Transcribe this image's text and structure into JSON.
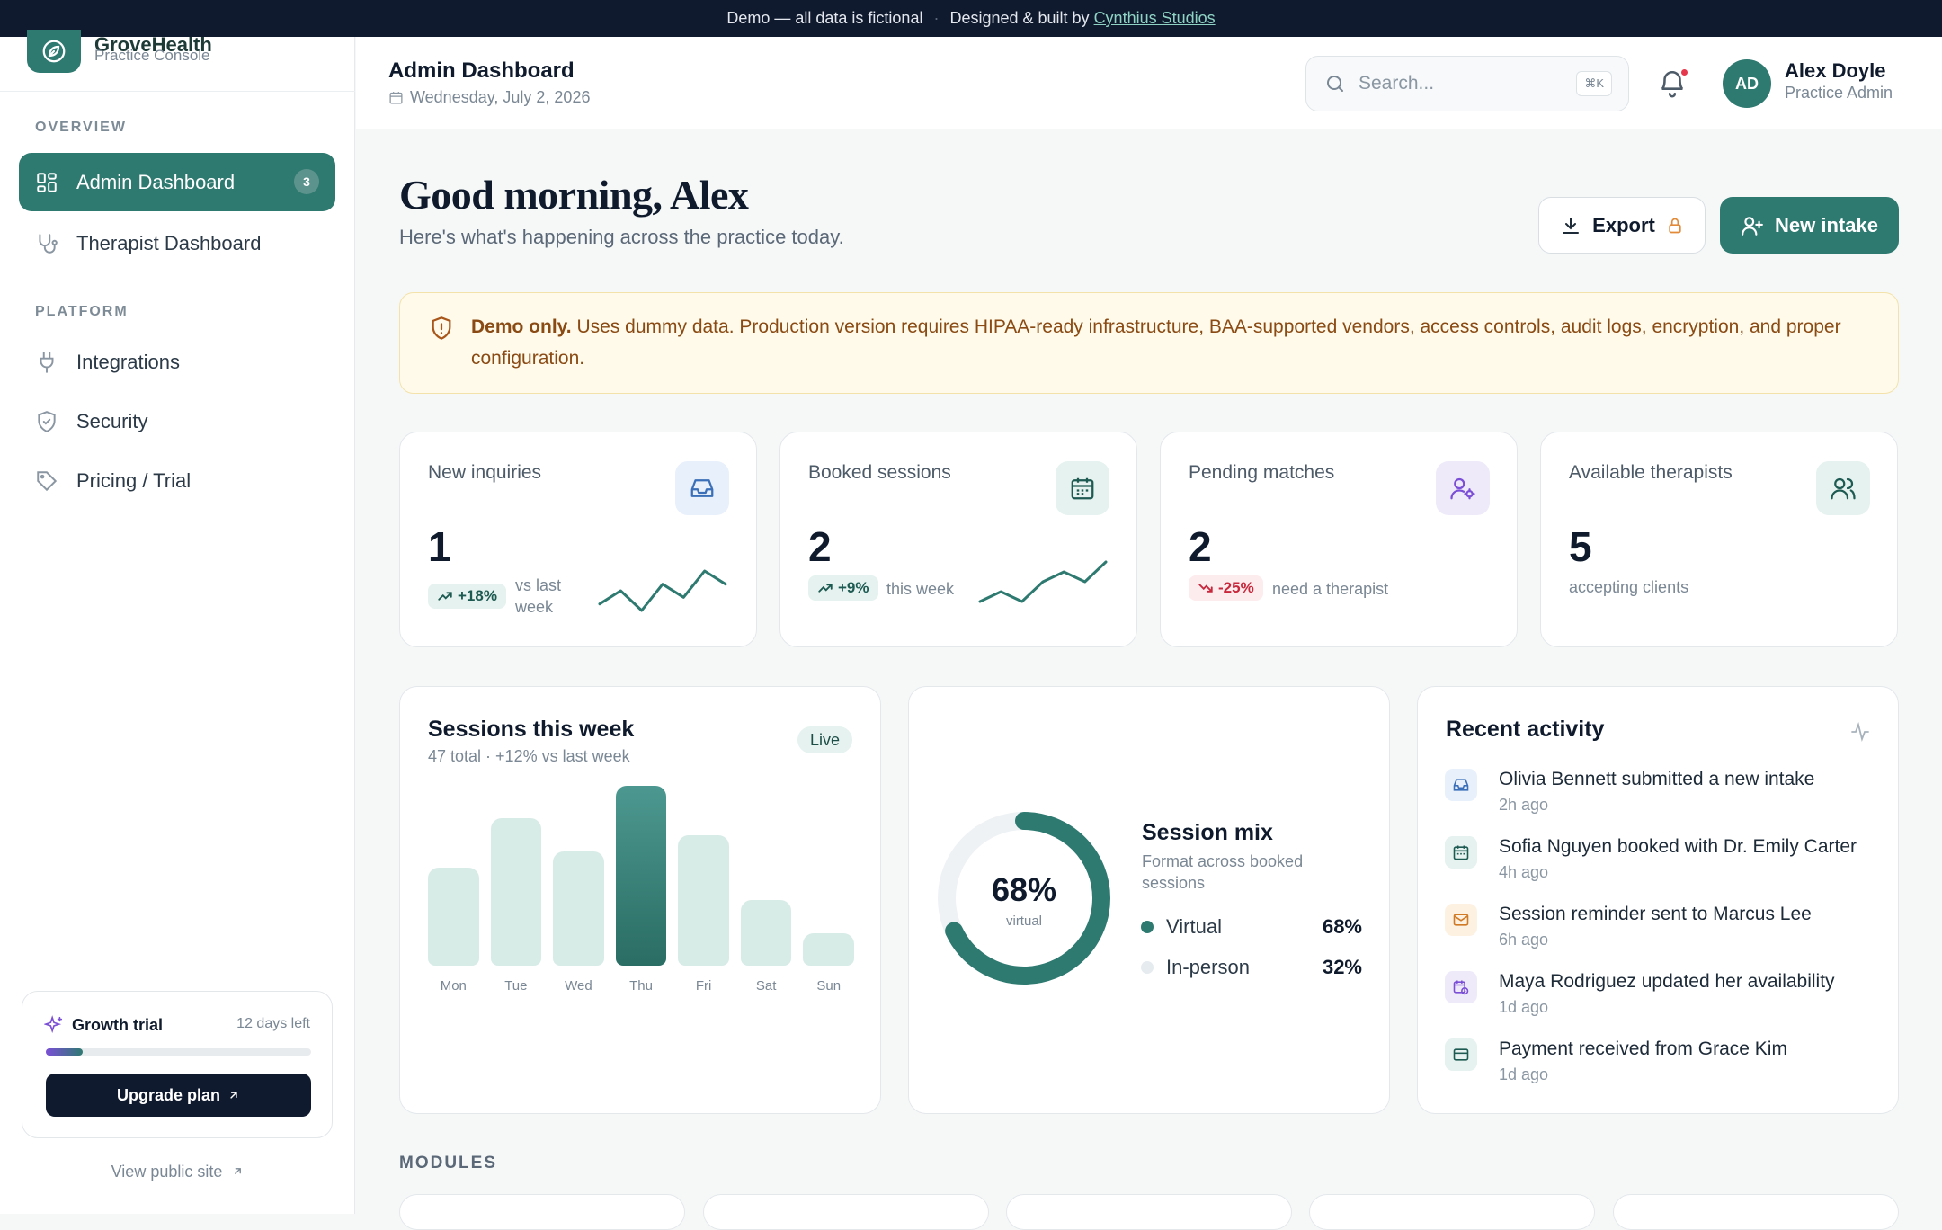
{
  "banner": {
    "text": "Demo — all data is fictional",
    "sep": "·",
    "credit_prefix": "Designed & built by",
    "credit_link": "Cynthius Studios"
  },
  "brand": {
    "name": "GroveHealth",
    "subtitle": "Practice Console"
  },
  "sidebar": {
    "overview_label": "OVERVIEW",
    "platform_label": "PLATFORM",
    "items": [
      {
        "label": "Admin Dashboard",
        "icon": "grid-icon",
        "badge": "3",
        "active": true
      },
      {
        "label": "Therapist Dashboard",
        "icon": "stethoscope-icon"
      },
      {
        "label": "Integrations",
        "icon": "plug-icon"
      },
      {
        "label": "Security",
        "icon": "shield-icon"
      },
      {
        "label": "Pricing / Trial",
        "icon": "tag-icon"
      }
    ],
    "trial": {
      "title": "Growth trial",
      "days_left": "12 days left",
      "progress": 0.14,
      "button": "Upgrade plan"
    },
    "view_public_site": "View public site"
  },
  "header": {
    "title": "Admin Dashboard",
    "date": "Wednesday, July 2, 2026",
    "search_placeholder": "Search...",
    "search_shortcut": "⌘K",
    "user": {
      "initials": "AD",
      "name": "Alex Doyle",
      "role": "Practice Admin"
    }
  },
  "greeting": {
    "title": "Good morning, Alex",
    "subtitle": "Here's what's happening across the practice today."
  },
  "actions": {
    "export": "Export",
    "new_intake": "New intake"
  },
  "notice": {
    "bold": "Demo only.",
    "text": " Uses dummy data. Production version requires HIPAA-ready infrastructure, BAA-supported vendors, access controls, audit logs, encryption, and proper configuration."
  },
  "kpis": [
    {
      "label": "New inquiries",
      "value": "1",
      "delta": "+18%",
      "note": "vs last week",
      "trend": "up",
      "icon": "inbox-icon",
      "spark": [
        3,
        5,
        2,
        6,
        4,
        8,
        6
      ]
    },
    {
      "label": "Booked sessions",
      "value": "2",
      "delta": "+9%",
      "note": "this week",
      "trend": "up",
      "icon": "calendar-icon",
      "spark": [
        2,
        4,
        2,
        6,
        8,
        6,
        10
      ]
    },
    {
      "label": "Pending matches",
      "value": "2",
      "delta": "-25%",
      "note": "need a therapist",
      "trend": "down",
      "icon": "user-cog-icon"
    },
    {
      "label": "Available therapists",
      "value": "5",
      "note": "accepting clients",
      "icon": "users-icon"
    }
  ],
  "sessions_chart": {
    "title": "Sessions this week",
    "subtitle": "47 total · +12% vs last week",
    "badge": "Live",
    "chart_data": {
      "type": "bar",
      "categories": [
        "Mon",
        "Tue",
        "Wed",
        "Thu",
        "Fri",
        "Sat",
        "Sun"
      ],
      "values": [
        6,
        9,
        7,
        11,
        8,
        4,
        2
      ],
      "highlight": "Thu"
    }
  },
  "session_mix": {
    "title": "Session mix",
    "subtitle": "Format across booked sessions",
    "center_value": "68%",
    "center_label": "virtual",
    "chart_data": {
      "type": "pie",
      "categories": [
        "Virtual",
        "In-person"
      ],
      "values": [
        68,
        32
      ],
      "labels": [
        "68%",
        "32%"
      ]
    },
    "colors": {
      "virtual": "#2e7a71",
      "in_person": "#e6ebef"
    }
  },
  "activity": {
    "title": "Recent activity",
    "items": [
      {
        "text": "Olivia Bennett submitted a new intake",
        "time": "2h ago",
        "icon": "inbox-icon",
        "color": "#e8f0fb"
      },
      {
        "text": "Sofia Nguyen booked with Dr. Emily Carter",
        "time": "4h ago",
        "icon": "calendar-icon",
        "color": "#e5f2ef"
      },
      {
        "text": "Session reminder sent to Marcus Lee",
        "time": "6h ago",
        "icon": "mail-icon",
        "color": "#fdf1e2"
      },
      {
        "text": "Maya Rodriguez updated her availability",
        "time": "1d ago",
        "icon": "calendar-clock-icon",
        "color": "#efeaf9"
      },
      {
        "text": "Payment received from Grace Kim",
        "time": "1d ago",
        "icon": "card-icon",
        "color": "#e5f2ef"
      }
    ]
  },
  "modules_label": "MODULES"
}
